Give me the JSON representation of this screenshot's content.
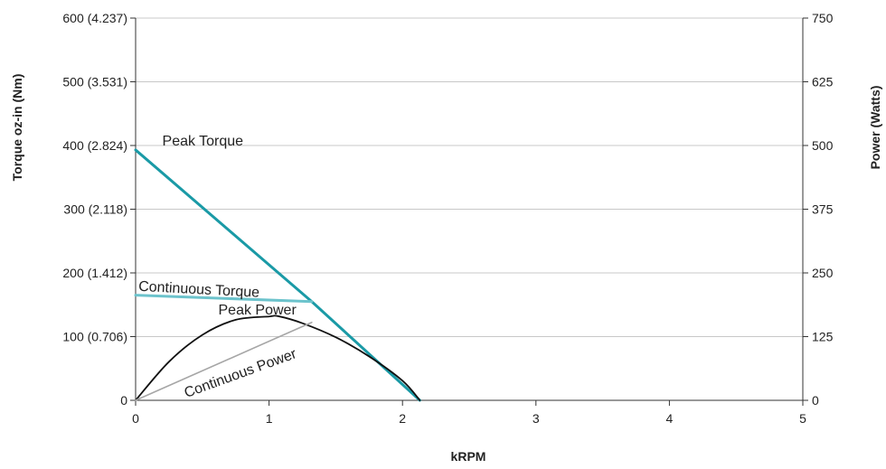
{
  "chart_data": {
    "type": "line",
    "xlabel": "kRPM",
    "ylabel": "Torque oz-in (Nm)",
    "y2label": "Power (Watts)",
    "xlim": [
      0,
      5
    ],
    "ylim": [
      0,
      600
    ],
    "y2lim": [
      0,
      750
    ],
    "x_ticks": [
      "0",
      "1",
      "2",
      "3",
      "4",
      "5"
    ],
    "y_ticks": [
      "0",
      "100 (0.706)",
      "200 (1.412)",
      "300 (2.118)",
      "400 (2.824)",
      "500 (3.531)",
      "600 (4.237)"
    ],
    "y2_ticks": [
      "0",
      "125",
      "250",
      "375",
      "500",
      "625",
      "750"
    ],
    "grid": true,
    "series": [
      {
        "name": "Peak Torque",
        "axis": "left",
        "color": "#1a9aa6",
        "x": [
          0,
          1.32,
          2.13
        ],
        "y": [
          393,
          155,
          0
        ]
      },
      {
        "name": "Continuous Torque",
        "axis": "left",
        "color": "#6cc3cc",
        "x": [
          0,
          1.32
        ],
        "y": [
          165,
          155
        ]
      },
      {
        "name": "Peak Power",
        "axis": "right",
        "color": "#111111",
        "x": [
          0,
          0.25,
          0.5,
          0.75,
          1.0,
          1.07,
          1.25,
          1.5,
          1.75,
          2.0,
          2.13
        ],
        "y": [
          0,
          75.7,
          128.4,
          158.0,
          164.5,
          165,
          151.3,
          123.7,
          86.1,
          38.4,
          0
        ]
      },
      {
        "name": "Continuous Power",
        "axis": "right",
        "color": "#a6a6a6",
        "x": [
          0,
          1.32
        ],
        "y": [
          0,
          153
        ]
      }
    ],
    "annotations": [
      {
        "text": "Peak Torque",
        "x": 0.2,
        "y": 400
      },
      {
        "text": "Continuous Torque",
        "x": 0.02,
        "y": 172
      },
      {
        "text": "Peak Power",
        "x": 0.62,
        "y": 135
      },
      {
        "text": "Continuous Power",
        "x": 0.38,
        "y": 4
      }
    ]
  }
}
